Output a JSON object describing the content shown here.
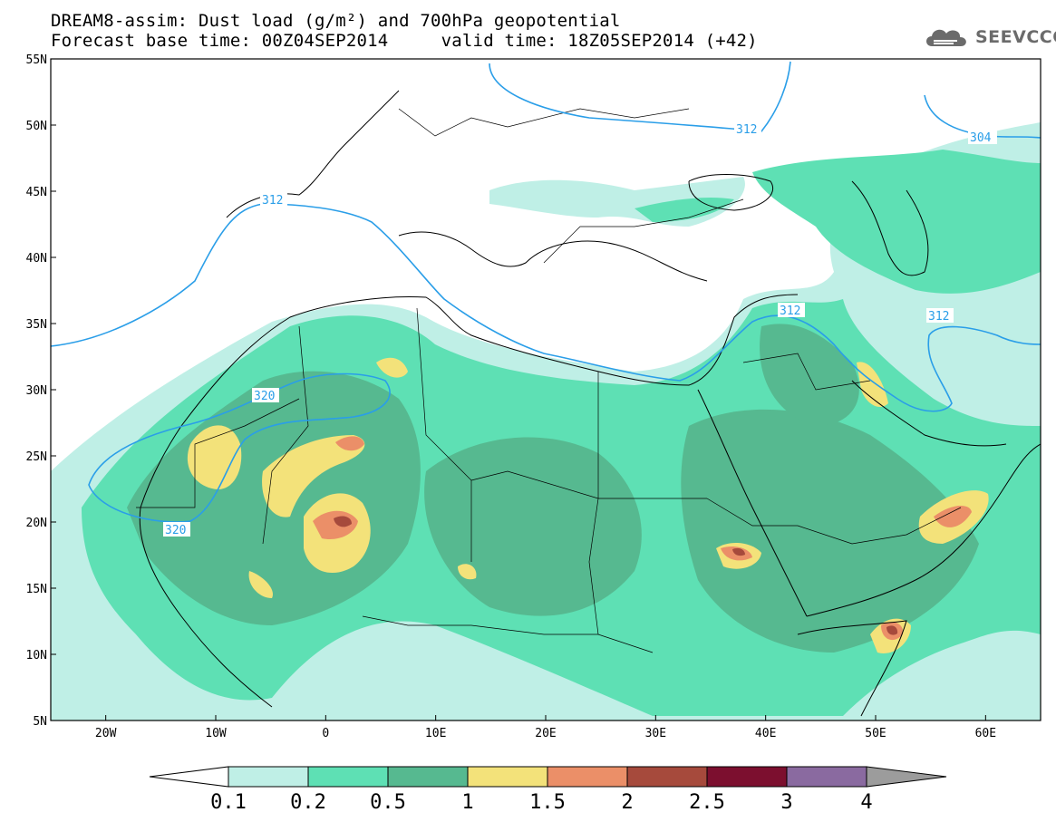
{
  "title_line1": "DREAM8-assim: Dust load (g/m²) and 700hPa geopotential",
  "title_line2": "Forecast base time: 00Z04SEP2014     valid time: 18Z05SEP2014 (+42)",
  "logo": {
    "text": "SEEVCCC",
    "icon": "cloud-icon"
  },
  "map": {
    "lon_range": [
      -25,
      65
    ],
    "lat_range": [
      5,
      55
    ],
    "lat_labels": [
      "55N",
      "50N",
      "45N",
      "40N",
      "35N",
      "30N",
      "25N",
      "20N",
      "15N",
      "10N",
      "5N"
    ],
    "lon_labels": [
      "20W",
      "10W",
      "0",
      "10E",
      "20E",
      "30E",
      "40E",
      "50E",
      "60E"
    ],
    "contour_labels": [
      "312",
      "304",
      "312",
      "312",
      "320",
      "320"
    ]
  },
  "colorbar": {
    "labels": [
      "0.1",
      "0.2",
      "0.5",
      "1",
      "1.5",
      "2",
      "2.5",
      "3",
      "4"
    ],
    "colors": [
      "#ffffff",
      "#bfefe6",
      "#5ee0b4",
      "#56b990",
      "#f3e27a",
      "#eb8f68",
      "#a64a3c",
      "#7c0f2f",
      "#8a6aa0",
      "#9c9c9c"
    ]
  },
  "colors": {
    "dust_0_1": "#bfefe6",
    "dust_0_2": "#5ee0b4",
    "dust_0_5": "#56b990",
    "dust_1": "#f3e27a",
    "dust_1_5": "#eb8f68",
    "dust_2": "#a64a3c",
    "dust_2_5": "#7c0f2f",
    "contour": "#2a9ee8"
  }
}
